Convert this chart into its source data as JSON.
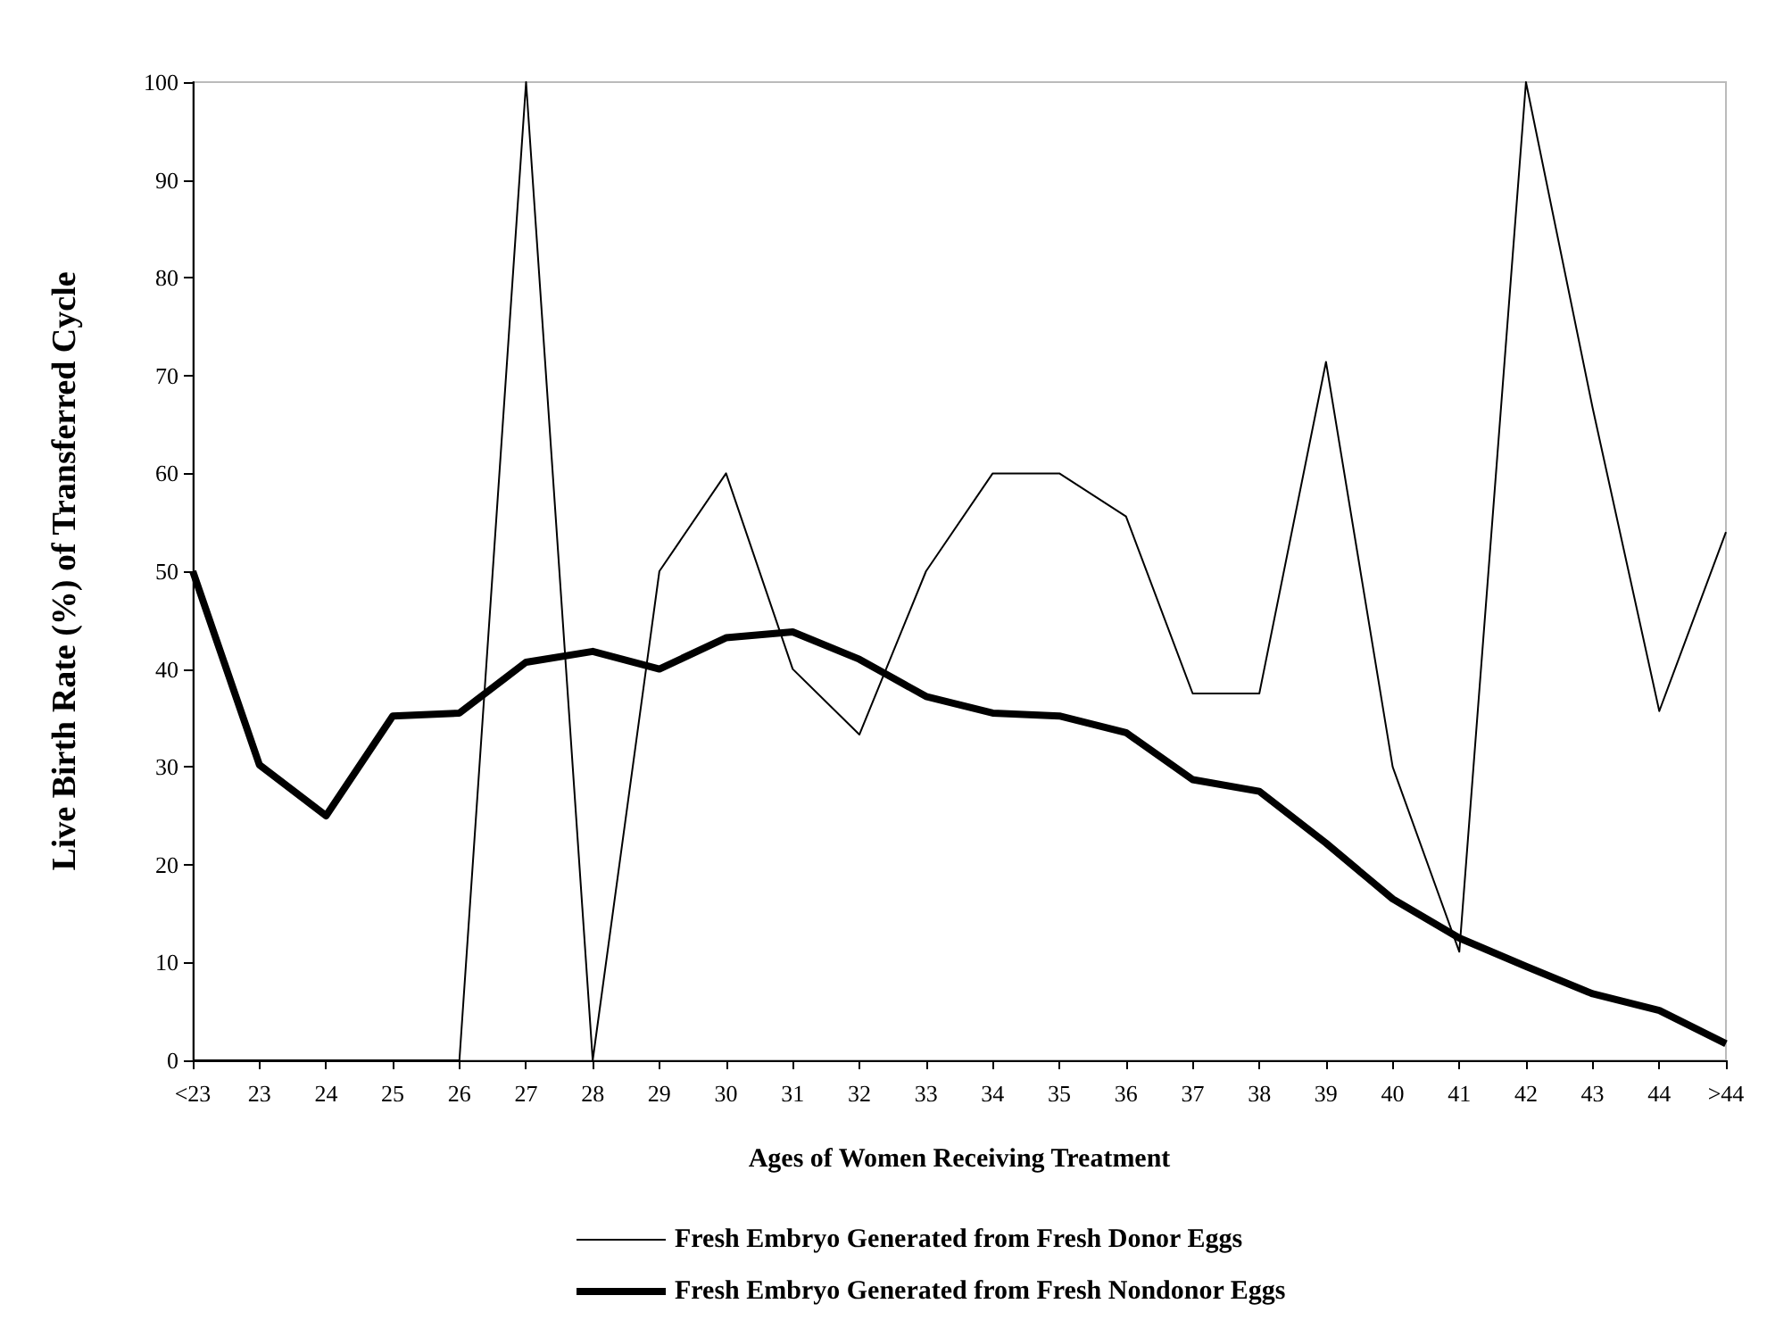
{
  "chart_data": {
    "type": "line",
    "xlabel": "Ages of Women Receiving Treatment",
    "ylabel": "Live Birth Rate (%) of Transferred Cycle",
    "categories": [
      "<23",
      "23",
      "24",
      "25",
      "26",
      "27",
      "28",
      "29",
      "30",
      "31",
      "32",
      "33",
      "34",
      "35",
      "36",
      "37",
      "38",
      "39",
      "40",
      "41",
      "42",
      "43",
      "44",
      ">44"
    ],
    "series": [
      {
        "name": "Fresh Embryo Generated from Fresh Donor Eggs",
        "color": "#000000",
        "values": [
          0,
          0,
          0,
          0,
          0,
          100,
          0,
          50,
          60,
          40,
          33.3,
          50,
          60,
          60,
          55.6,
          37.5,
          37.5,
          71.4,
          30,
          11.1,
          100,
          66.7,
          35.7,
          54
        ]
      },
      {
        "name": "Fresh Embryo Generated from Fresh Nondonor Eggs",
        "color": "#000000",
        "values": [
          50,
          30.2,
          25,
          35.2,
          35.5,
          40.7,
          41.8,
          40,
          43.2,
          43.8,
          41,
          37.2,
          35.5,
          35.2,
          33.5,
          28.7,
          27.5,
          22.2,
          16.5,
          12.5,
          9.6,
          6.8,
          5.1,
          1.7
        ]
      }
    ],
    "ylim": [
      0,
      100
    ],
    "yticks": [
      0,
      10,
      20,
      30,
      40,
      50,
      60,
      70,
      80,
      90,
      100
    ],
    "grid": false,
    "legend": "bottom",
    "marker": "none",
    "line_style": "solid"
  }
}
